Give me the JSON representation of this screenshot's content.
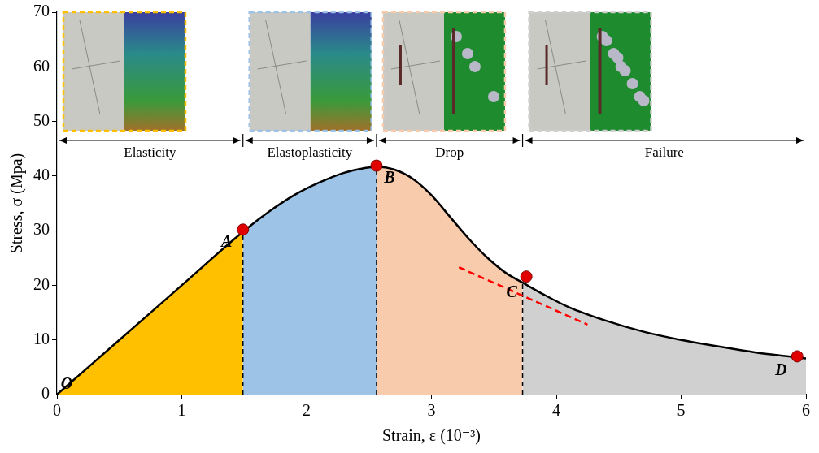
{
  "chart_data": {
    "type": "line",
    "x_label": "Strain, ε (10⁻³)",
    "y_label": "Stress, σ (Mpa)",
    "x": [
      0,
      0.5,
      1.0,
      1.49,
      1.7,
      1.9,
      2.1,
      2.3,
      2.45,
      2.56,
      2.7,
      2.85,
      3.0,
      3.15,
      3.3,
      3.45,
      3.6,
      3.73,
      3.9,
      4.1,
      4.4,
      4.7,
      5.0,
      5.3,
      5.6,
      5.9,
      6.0
    ],
    "values": [
      0,
      10,
      20,
      29.8,
      33.5,
      36.5,
      38.8,
      40.6,
      41.4,
      41.7,
      41.2,
      39.5,
      36.5,
      32.5,
      28.5,
      25.0,
      22.2,
      20.5,
      18.3,
      16.0,
      13.5,
      11.5,
      10.0,
      8.8,
      7.7,
      6.9,
      6.6
    ],
    "color": "#000000",
    "xlim": [
      0,
      6
    ],
    "xticks": [
      0,
      1,
      2,
      3,
      4,
      5,
      6
    ],
    "ylim": [
      0,
      70
    ],
    "yticks": [
      0,
      10,
      20,
      30,
      40,
      50,
      60,
      70
    ],
    "grid": false,
    "legend": "none",
    "phases": [
      {
        "label": "Elasticity",
        "from": 0,
        "to": 1.49,
        "color": "#ffc000"
      },
      {
        "label": "Elastoplasticity",
        "from": 1.49,
        "to": 2.56,
        "color": "#9dc3e6"
      },
      {
        "label": "Drop",
        "from": 2.56,
        "to": 3.73,
        "color": "#f8cbad"
      },
      {
        "label": "Failure",
        "from": 3.73,
        "to": 6.0,
        "color": "#d0d0d0"
      }
    ],
    "points": [
      {
        "label": "O",
        "x": 0,
        "y": 0,
        "marker": "none"
      },
      {
        "label": "A",
        "x": 1.49,
        "y": 30.2,
        "marker": "circle"
      },
      {
        "label": "B",
        "x": 2.56,
        "y": 41.9,
        "marker": "circle"
      },
      {
        "label": "C",
        "x": 3.76,
        "y": 21.6,
        "marker": "circle"
      },
      {
        "label": "D",
        "x": 5.93,
        "y": 7.0,
        "marker": "circle"
      }
    ],
    "tangent": {
      "x": [
        3.22,
        4.25
      ],
      "y": [
        23.3,
        12.8
      ],
      "color": "#ff0000",
      "line_style": "dashed"
    }
  }
}
